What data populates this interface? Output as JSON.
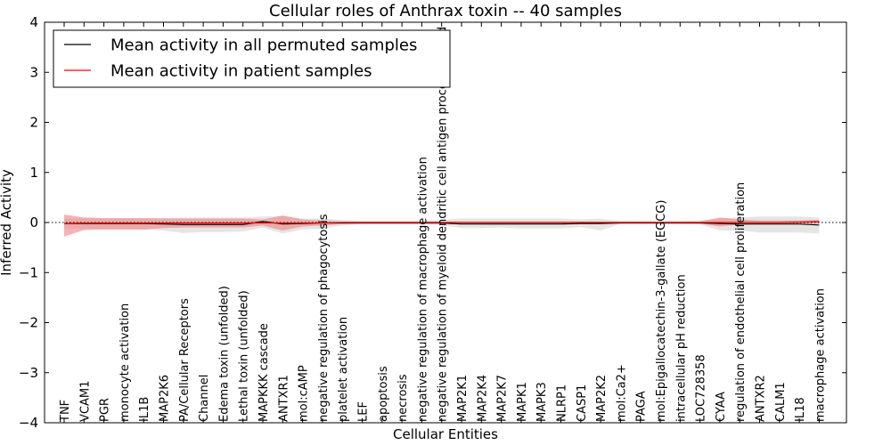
{
  "chart_data": {
    "type": "line",
    "title": "Cellular roles of Anthrax toxin -- 40 samples",
    "xlabel": "Cellular Entities",
    "ylabel": "Inferred Activity",
    "ylim": [
      -4,
      4
    ],
    "yticks": [
      -4,
      -3,
      -2,
      -1,
      0,
      1,
      2,
      3,
      4
    ],
    "legend_position": "upper-left",
    "categories": [
      "TNF",
      "VCAM1",
      "PGR",
      "monocyte activation",
      "IL1B",
      "MAP2K6",
      "PA/Cellular Receptors",
      "Channel",
      "Edema toxin (unfolded)",
      "Lethal toxin (unfolded)",
      "MAPKKK cascade",
      "ANTXR1",
      "mol:cAMP",
      "negative regulation of phagocytosis",
      "platelet activation",
      "LEF",
      "apoptosis",
      "necrosis",
      "negative regulation of macrophage activation",
      "negative regulation of myeloid dendritic cell antigen processing and",
      "MAP2K1",
      "MAP2K4",
      "MAP2K7",
      "MAPK1",
      "MAPK3",
      "NLRP1",
      "CASP1",
      "MAP2K2",
      "mol:Ca2+",
      "PAGA",
      "mol:Epigallocatechin-3-gallate (EGCG)",
      "intracellular pH reduction",
      "LOC728358",
      "CYAA",
      "regulation of endothelial cell proliferation",
      "ANTXR2",
      "CALM1",
      "IL18",
      "macrophage activation"
    ],
    "series": [
      {
        "name": "Mean activity in all permuted samples",
        "color": "#000000",
        "values": [
          -0.02,
          -0.02,
          -0.02,
          -0.02,
          -0.02,
          -0.03,
          -0.04,
          -0.04,
          -0.04,
          -0.04,
          0.02,
          -0.03,
          -0.02,
          -0.01,
          -0.01,
          -0.01,
          -0.01,
          -0.01,
          -0.01,
          -0.01,
          -0.03,
          -0.03,
          -0.03,
          -0.03,
          -0.03,
          -0.03,
          -0.02,
          -0.02,
          -0.01,
          -0.01,
          -0.01,
          -0.01,
          -0.01,
          -0.02,
          -0.03,
          -0.03,
          -0.03,
          -0.03,
          -0.05
        ],
        "lower": [
          -0.12,
          -0.12,
          -0.13,
          -0.13,
          -0.14,
          -0.16,
          -0.21,
          -0.19,
          -0.19,
          -0.18,
          -0.1,
          -0.22,
          -0.14,
          -0.12,
          -0.06,
          -0.04,
          -0.04,
          -0.04,
          -0.04,
          -0.05,
          -0.11,
          -0.11,
          -0.1,
          -0.12,
          -0.12,
          -0.12,
          -0.09,
          -0.16,
          -0.03,
          -0.03,
          -0.03,
          -0.03,
          -0.04,
          -0.16,
          -0.16,
          -0.2,
          -0.2,
          -0.2,
          -0.22
        ],
        "upper": [
          0.08,
          0.08,
          0.08,
          0.08,
          0.08,
          0.09,
          0.1,
          0.1,
          0.1,
          0.1,
          0.12,
          0.13,
          0.08,
          0.08,
          0.05,
          0.03,
          0.03,
          0.03,
          0.03,
          0.05,
          0.08,
          0.08,
          0.08,
          0.08,
          0.08,
          0.08,
          0.06,
          0.08,
          0.03,
          0.03,
          0.03,
          0.03,
          0.04,
          0.08,
          0.1,
          0.12,
          0.12,
          0.12,
          0.1
        ]
      },
      {
        "name": "Mean activity in patient samples",
        "color": "#ff0000",
        "values": [
          -0.02,
          -0.01,
          -0.01,
          -0.01,
          -0.01,
          -0.01,
          -0.01,
          -0.01,
          -0.01,
          -0.01,
          -0.01,
          -0.01,
          -0.01,
          -0.01,
          0,
          0,
          0,
          0,
          0,
          0,
          0,
          0,
          0,
          0,
          0,
          0,
          0,
          0,
          0,
          0,
          0,
          0,
          0,
          0,
          0,
          0,
          0,
          0.01,
          0.02
        ],
        "lower": [
          -0.28,
          -0.15,
          -0.14,
          -0.14,
          -0.14,
          -0.11,
          -0.1,
          -0.1,
          -0.1,
          -0.1,
          -0.06,
          -0.16,
          -0.08,
          -0.06,
          -0.03,
          -0.02,
          -0.02,
          -0.02,
          -0.02,
          -0.02,
          -0.02,
          -0.02,
          -0.02,
          -0.02,
          -0.02,
          -0.02,
          -0.02,
          -0.02,
          -0.02,
          -0.02,
          -0.02,
          -0.02,
          -0.02,
          -0.08,
          -0.04,
          -0.03,
          -0.03,
          -0.02,
          -0.02
        ],
        "upper": [
          0.16,
          0.1,
          0.09,
          0.09,
          0.09,
          0.08,
          0.08,
          0.08,
          0.08,
          0.08,
          0.06,
          0.14,
          0.06,
          0.04,
          0.02,
          0.02,
          0.02,
          0.02,
          0.02,
          0.02,
          0.02,
          0.02,
          0.02,
          0.02,
          0.02,
          0.02,
          0.02,
          0.02,
          0.02,
          0.02,
          0.02,
          0.02,
          0.02,
          0.1,
          0.06,
          0.04,
          0.04,
          0.04,
          0.05
        ]
      }
    ]
  }
}
